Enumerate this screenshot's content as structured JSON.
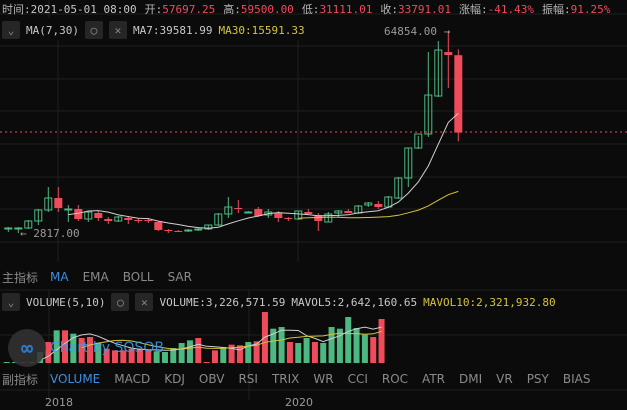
{
  "header": {
    "time_label": "时间:",
    "time": "2021-05-01 08:00",
    "open_label": "开:",
    "open": "57697.25",
    "high_label": "高:",
    "high": "59500.00",
    "low_label": "低:",
    "low": "31111.01",
    "close_label": "收:",
    "close": "33791.01",
    "change_label": "涨幅:",
    "change": "-41.43%",
    "amp_label": "振幅:",
    "amp": "91.25%"
  },
  "main_legend": {
    "name": "MA(7,30)",
    "ma7": "MA7:39581.99",
    "ma30": "MA30:15591.33"
  },
  "annotations": {
    "max": "64854.00",
    "min": "2817.00"
  },
  "main_tabs": {
    "label": "主指标",
    "items": [
      "MA",
      "EMA",
      "BOLL",
      "SAR"
    ],
    "active": "MA"
  },
  "vol_legend": {
    "name": "VOLUME(5,10)",
    "volume": "VOLUME:3,226,571.59",
    "mavol5": "MAVOL5:2,642,160.65",
    "mavol10": "MAVOL10:2,321,932.80"
  },
  "sub_tabs": {
    "label": "副指标",
    "items": [
      "VOLUME",
      "MACD",
      "KDJ",
      "OBV",
      "RSI",
      "TRIX",
      "WR",
      "CCI",
      "ROC",
      "ATR",
      "DMI",
      "VR",
      "PSY",
      "BIAS"
    ],
    "active": "VOLUME"
  },
  "x_axis": [
    "2018",
    "2020"
  ],
  "watermark": "Chart by SOSOB",
  "colors": {
    "up": "#4eb882",
    "down": "#ef4b5b",
    "ma7": "#d0d0d0",
    "ma30": "#d7c33a",
    "active": "#3d8ee0"
  },
  "chart_data": {
    "type": "candlestick",
    "candles": [
      [
        4360,
        4670,
        3130,
        4360
      ],
      [
        4360,
        4670,
        2817,
        4360
      ],
      [
        4360,
        6830,
        4050,
        6520
      ],
      [
        6520,
        10230,
        5290,
        9920
      ],
      [
        9920,
        17010,
        9300,
        13620
      ],
      [
        13620,
        17010,
        9300,
        10530
      ],
      [
        10230,
        11460,
        6210,
        10230
      ],
      [
        10230,
        11460,
        6520,
        7140
      ],
      [
        7140,
        9610,
        6210,
        9300
      ],
      [
        8990,
        9610,
        6520,
        7450
      ],
      [
        7140,
        7760,
        5590,
        6520
      ],
      [
        6520,
        8060,
        6210,
        7760
      ],
      [
        7450,
        8060,
        5590,
        6830
      ],
      [
        6830,
        7450,
        5900,
        6520
      ],
      [
        6830,
        7450,
        5900,
        6520
      ],
      [
        6210,
        6520,
        3430,
        3740
      ],
      [
        3740,
        4050,
        2817,
        3430
      ],
      [
        3430,
        3740,
        3130,
        3280
      ],
      [
        3430,
        4050,
        3130,
        3740
      ],
      [
        3740,
        4360,
        3430,
        4050
      ],
      [
        4050,
        5290,
        3740,
        5290
      ],
      [
        5290,
        8990,
        4980,
        8680
      ],
      [
        8680,
        13930,
        7450,
        10840
      ],
      [
        10530,
        13000,
        8990,
        10230
      ],
      [
        9300,
        9610,
        9300,
        9300
      ],
      [
        10230,
        10840,
        7760,
        8060
      ],
      [
        8370,
        10230,
        7450,
        9300
      ],
      [
        8990,
        9610,
        6210,
        7450
      ],
      [
        7450,
        7760,
        6520,
        7140
      ],
      [
        7140,
        9610,
        6830,
        9610
      ],
      [
        9300,
        10230,
        8370,
        8680
      ],
      [
        8370,
        8990,
        3430,
        6520
      ],
      [
        6210,
        9300,
        6210,
        8680
      ],
      [
        8990,
        9920,
        7760,
        9610
      ],
      [
        9610,
        10230,
        8990,
        8990
      ],
      [
        8990,
        11460,
        8680,
        11150
      ],
      [
        11460,
        12380,
        10840,
        12080
      ],
      [
        11770,
        12690,
        10230,
        10840
      ],
      [
        10840,
        14240,
        10530,
        13930
      ],
      [
        13620,
        20100,
        13310,
        19790
      ],
      [
        19790,
        29050,
        17010,
        29050
      ],
      [
        29050,
        32750,
        28740,
        33370
      ],
      [
        33370,
        58670,
        32440,
        45400
      ],
      [
        45100,
        62070,
        44790,
        59290
      ],
      [
        58670,
        64854,
        47560,
        57750
      ],
      [
        57697,
        59500,
        31111,
        33791
      ]
    ],
    "volumes": [
      49000,
      49000,
      49000,
      49000,
      806000,
      1539000,
      2394000,
      2394000,
      2150000,
      1832000,
      1906000,
      1490000,
      1050000,
      928000,
      928000,
      1050000,
      1050000,
      928000,
      855000,
      806000,
      1099000,
      1466000,
      1661000,
      1832000,
      73000,
      928000,
      1173000,
      1344000,
      1295000,
      1539000,
      1588000,
      3738000,
      2516000,
      2638000,
      1539000,
      1466000,
      1832000,
      1539000,
      1466000,
      2638000,
      2516000,
      3371000,
      2565000,
      2077000,
      1906000,
      3226572
    ],
    "volume_dir": [
      "up",
      "up",
      "down",
      "up",
      "up",
      "down",
      "up",
      "down",
      "up",
      "down",
      "down",
      "up",
      "down",
      "down",
      "down",
      "down",
      "down",
      "down",
      "up",
      "up",
      "up",
      "up",
      "up",
      "down",
      "down",
      "down",
      "up",
      "down",
      "down",
      "up",
      "down",
      "down",
      "up",
      "up",
      "down",
      "up",
      "up",
      "down",
      "up",
      "up",
      "up",
      "up",
      "up",
      "up",
      "down",
      "down"
    ],
    "ma_periods": [
      7,
      30
    ],
    "vol_ma_periods": [
      5,
      10
    ],
    "y_range": [
      2817,
      64854
    ]
  }
}
